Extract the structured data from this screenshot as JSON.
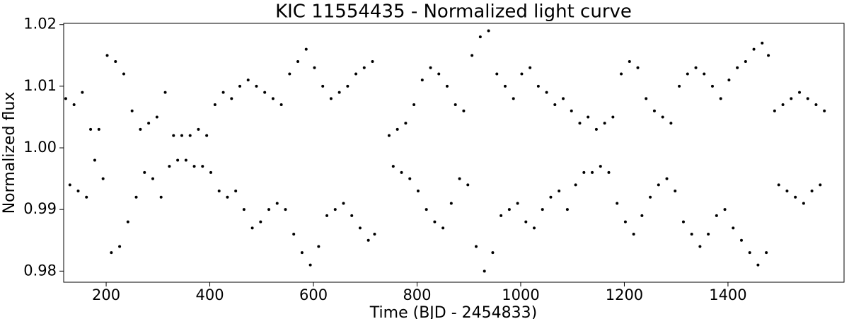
{
  "chart_data": {
    "type": "scatter",
    "title": "KIC 11554435 - Normalized light curve",
    "x_label": "Time (BJD - 2454833)",
    "y_label": "Normalized flux",
    "color": "#000000",
    "xlim": [
      118,
      1624
    ],
    "ylim": [
      0.9782,
      1.0202
    ],
    "xticks": [
      200,
      400,
      600,
      800,
      1000,
      1200,
      1400
    ],
    "yticks": [
      0.98,
      0.99,
      {
        "value": 1.0,
        "label": "1.00"
      },
      1.01,
      1.02
    ],
    "x": [
      122,
      130,
      138,
      146,
      154,
      162,
      170,
      178,
      186,
      194,
      202,
      210,
      218,
      226,
      234,
      242,
      250,
      258,
      266,
      274,
      282,
      290,
      298,
      306,
      314,
      322,
      330,
      338,
      346,
      354,
      362,
      370,
      378,
      386,
      394,
      402,
      410,
      418,
      426,
      434,
      442,
      450,
      458,
      466,
      474,
      482,
      490,
      498,
      506,
      514,
      522,
      530,
      538,
      546,
      554,
      562,
      570,
      578,
      586,
      594,
      602,
      610,
      618,
      626,
      634,
      642,
      650,
      658,
      666,
      674,
      682,
      690,
      698,
      706,
      714,
      718,
      746,
      754,
      762,
      770,
      778,
      786,
      794,
      802,
      810,
      818,
      826,
      834,
      842,
      850,
      858,
      866,
      874,
      882,
      890,
      898,
      906,
      914,
      922,
      930,
      938,
      946,
      954,
      962,
      970,
      978,
      986,
      994,
      1002,
      1010,
      1018,
      1026,
      1034,
      1042,
      1050,
      1058,
      1066,
      1074,
      1082,
      1090,
      1098,
      1106,
      1114,
      1122,
      1130,
      1138,
      1146,
      1154,
      1162,
      1170,
      1178,
      1186,
      1194,
      1202,
      1210,
      1218,
      1226,
      1234,
      1242,
      1250,
      1258,
      1266,
      1274,
      1282,
      1290,
      1298,
      1306,
      1314,
      1322,
      1330,
      1338,
      1346,
      1354,
      1362,
      1370,
      1378,
      1386,
      1394,
      1402,
      1410,
      1418,
      1426,
      1434,
      1442,
      1450,
      1458,
      1466,
      1474,
      1478,
      1490,
      1498,
      1506,
      1514,
      1522,
      1530,
      1538,
      1546,
      1554,
      1562,
      1570,
      1578,
      1586
    ],
    "y": [
      1.008,
      0.994,
      1.007,
      0.993,
      1.009,
      0.992,
      1.003,
      0.998,
      1.003,
      0.995,
      1.015,
      0.983,
      1.014,
      0.984,
      1.012,
      0.988,
      1.006,
      0.992,
      1.003,
      0.996,
      1.004,
      0.995,
      1.005,
      0.992,
      1.009,
      0.997,
      1.002,
      0.998,
      1.002,
      0.998,
      1.002,
      0.997,
      1.003,
      0.997,
      1.002,
      0.996,
      1.007,
      0.993,
      1.009,
      0.992,
      1.008,
      0.993,
      1.01,
      0.99,
      1.011,
      0.987,
      1.01,
      0.988,
      1.009,
      0.99,
      1.008,
      0.991,
      1.007,
      0.99,
      1.012,
      0.986,
      1.014,
      0.983,
      1.016,
      0.981,
      1.013,
      0.984,
      1.01,
      0.989,
      1.008,
      0.99,
      1.009,
      0.991,
      1.01,
      0.989,
      1.012,
      0.987,
      1.013,
      0.985,
      1.014,
      0.986,
      1.002,
      0.997,
      1.003,
      0.996,
      1.004,
      0.995,
      1.007,
      0.993,
      1.011,
      0.99,
      1.013,
      0.988,
      1.012,
      0.987,
      1.01,
      0.991,
      1.007,
      0.995,
      1.006,
      0.994,
      1.015,
      0.984,
      1.018,
      0.98,
      1.019,
      0.983,
      1.012,
      0.989,
      1.01,
      0.99,
      1.008,
      0.991,
      1.012,
      0.988,
      1.013,
      0.987,
      1.01,
      0.99,
      1.009,
      0.992,
      1.007,
      0.993,
      1.008,
      0.99,
      1.006,
      0.994,
      1.004,
      0.996,
      1.005,
      0.996,
      1.003,
      0.997,
      1.004,
      0.996,
      1.005,
      0.991,
      1.012,
      0.988,
      1.014,
      0.986,
      1.013,
      0.989,
      1.008,
      0.992,
      1.006,
      0.994,
      1.005,
      0.995,
      1.004,
      0.993,
      1.01,
      0.988,
      1.012,
      0.986,
      1.013,
      0.984,
      1.012,
      0.986,
      1.01,
      0.989,
      1.008,
      0.99,
      1.011,
      0.987,
      1.013,
      0.985,
      1.014,
      0.983,
      1.016,
      0.981,
      1.017,
      0.983,
      1.015,
      1.006,
      0.994,
      1.007,
      0.993,
      1.008,
      0.992,
      1.009,
      0.991,
      1.008,
      0.993,
      1.007,
      0.994,
      1.006
    ]
  }
}
